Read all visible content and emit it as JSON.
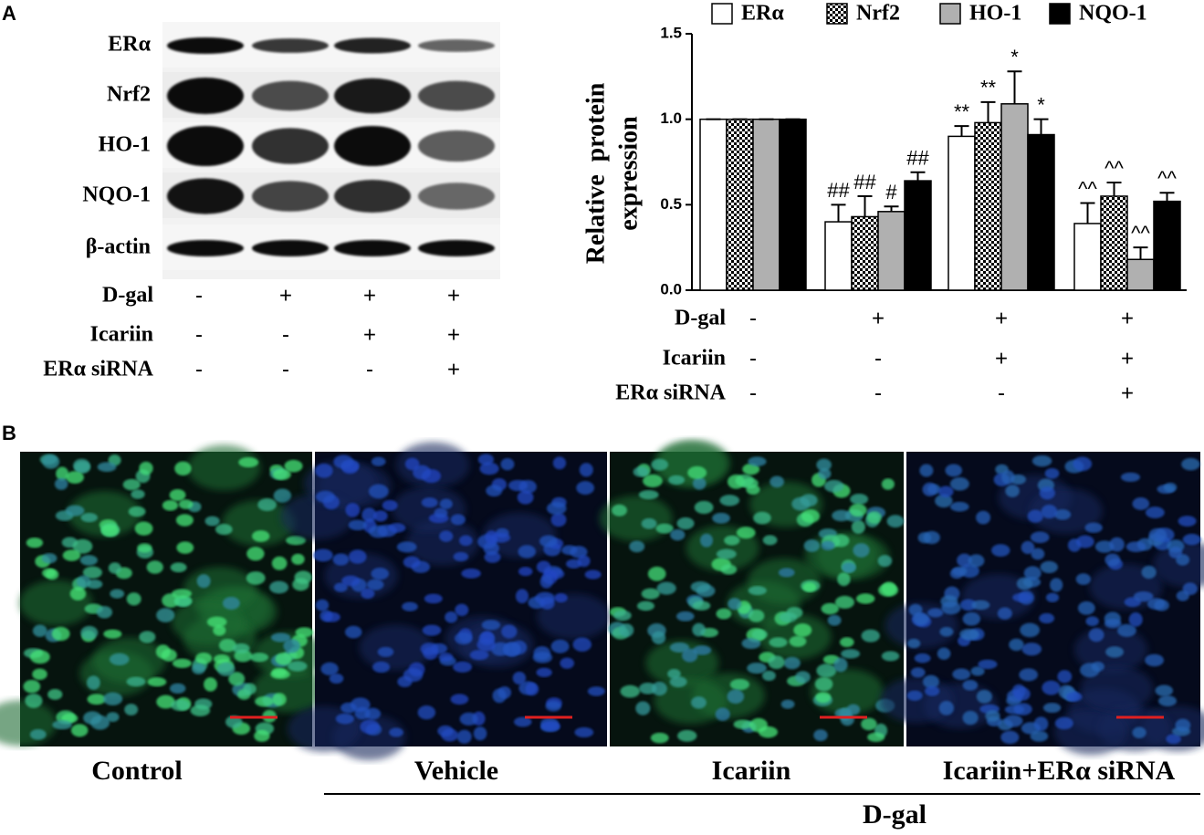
{
  "panel_labels": [
    "A",
    "B"
  ],
  "blot": {
    "rows": [
      "ERα",
      "Nrf2",
      "HO-1",
      "NQO-1",
      "β-actin"
    ]
  },
  "treatments": {
    "rows": [
      {
        "name": "D-gal",
        "signs": [
          "-",
          "+",
          "+",
          "+"
        ]
      },
      {
        "name": "Icariin",
        "signs": [
          "-",
          "-",
          "+",
          "+"
        ]
      },
      {
        "name": "ERα siRNA",
        "signs": [
          "-",
          "-",
          "-",
          "+"
        ]
      }
    ]
  },
  "chart_data": {
    "type": "bar",
    "ylabel": [
      "Relative  protein",
      "expression"
    ],
    "ylim": [
      0,
      1.5
    ],
    "yticks": [
      {
        "value": 0,
        "label": "0.0"
      },
      0.5,
      {
        "value": 1,
        "label": "1.0"
      },
      1.5
    ],
    "series": [
      {
        "name": "ERα",
        "color": "#ffffff",
        "values": [
          1.0,
          0.4,
          0.9,
          0.39
        ],
        "errors": [
          0,
          0.1,
          0.06,
          0.12
        ],
        "annotations": [
          null,
          "##",
          "**",
          "^^"
        ]
      },
      {
        "name": "Nrf2",
        "color": "#ffffff",
        "pattern": "checker",
        "values": [
          1.0,
          0.43,
          0.98,
          0.55
        ],
        "errors": [
          0,
          0.12,
          0.12,
          0.08
        ],
        "annotations": [
          null,
          "##",
          "**",
          "^^"
        ]
      },
      {
        "name": "HO-1",
        "color": "#b0b0b0",
        "values": [
          1.0,
          0.46,
          1.09,
          0.18
        ],
        "errors": [
          0,
          0.03,
          0.19,
          0.07
        ],
        "annotations": [
          null,
          "#",
          "*",
          "^^"
        ]
      },
      {
        "name": "NQO-1",
        "color": "#000000",
        "values": [
          1.0,
          0.64,
          0.91,
          0.52
        ],
        "errors": [
          0,
          0.05,
          0.09,
          0.05
        ],
        "annotations": [
          null,
          "##",
          "*",
          "^^"
        ]
      }
    ],
    "treatments": [
      {
        "name": "D-gal",
        "signs": [
          "-",
          "+",
          "+",
          "+"
        ]
      },
      {
        "name": "Icariin",
        "signs": [
          "-",
          "-",
          "+",
          "+"
        ]
      },
      {
        "name": "ERα siRNA",
        "signs": [
          "-",
          "-",
          "-",
          "+"
        ]
      }
    ]
  },
  "images": {
    "captions": [
      "Control",
      "Vehicle",
      "Icariin",
      "Icariin+ERα siRNA"
    ],
    "group_label": "D-gal"
  }
}
